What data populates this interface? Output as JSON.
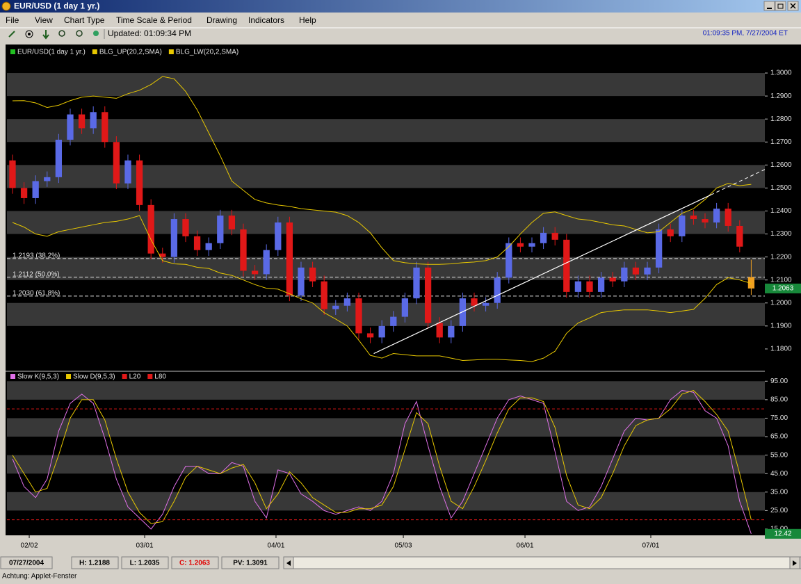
{
  "window": {
    "title": "EUR/USD (1 day  1 yr.)",
    "menu": [
      "File",
      "View",
      "Chart Type",
      "Time Scale & Period",
      "Drawing",
      "Indicators",
      "Help"
    ],
    "updated": "Updated: 01:09:34 PM",
    "clock": "01:09:35 PM, 7/27/2004 ET",
    "status": [
      "07/27/2004",
      "H: 1.2188",
      "L: 1.2035",
      "C: 1.2063",
      "PV: 1.3091"
    ],
    "footer": "Achtung: Applet-Fenster"
  },
  "chart_data": [
    {
      "type": "candlestick",
      "grid": true,
      "grid_color": "#383838",
      "box_color": "#17883a",
      "xlim": [
        -0.48,
        65.18
      ],
      "ylim": [
        1.1706,
        1.3112
      ],
      "yticks": [
        {
          "value": 1.18,
          "label": "1.1800"
        },
        {
          "value": 1.19,
          "label": "1.1900"
        },
        {
          "value": 1.2,
          "label": "1.2000"
        },
        {
          "value": 1.21,
          "label": "1.2100"
        },
        {
          "value": 1.22,
          "label": "1.2200"
        },
        {
          "value": 1.23,
          "label": "1.2300"
        },
        {
          "value": 1.24,
          "label": "1.2400"
        },
        {
          "value": 1.25,
          "label": "1.2500"
        },
        {
          "value": 1.26,
          "label": "1.2600"
        },
        {
          "value": 1.27,
          "label": "1.2700"
        },
        {
          "value": 1.28,
          "label": "1.2800"
        },
        {
          "value": 1.29,
          "label": "1.2900"
        },
        {
          "value": 1.3,
          "label": "1.3000"
        }
      ],
      "series": [
        {
          "name": "EUR/USD(1 day  1 yr.)",
          "color": "#22c022",
          "up_color": "#5a6ae6",
          "down_color": "#e01818",
          "last_color": "#f0a020",
          "open": [
            1.262,
            1.25,
            1.2456,
            1.253,
            1.2547,
            1.271,
            1.282,
            1.276,
            1.283,
            1.27,
            1.252,
            1.262,
            1.2426,
            1.2215,
            1.22,
            1.2365,
            1.229,
            1.223,
            1.226,
            1.238,
            1.232,
            1.214,
            1.2125,
            1.223,
            1.235,
            1.2033,
            1.2154,
            1.2094,
            1.1973,
            1.1988,
            1.202,
            1.1868,
            1.185,
            1.19,
            1.194,
            1.202,
            1.2154,
            1.1913,
            1.185,
            1.19,
            1.202,
            1.1988,
            1.2,
            1.211,
            1.226,
            1.2245,
            1.226,
            1.2305,
            1.2275,
            1.2048,
            1.2094,
            1.2048,
            1.211,
            1.2094,
            1.2154,
            1.2124,
            1.2154,
            1.232,
            1.229,
            1.238,
            1.2365,
            1.235,
            1.241,
            1.2335,
            1.2112
          ],
          "high": [
            1.2645,
            1.2525,
            1.2555,
            1.2572,
            1.2735,
            1.2845,
            1.2845,
            1.2855,
            1.2855,
            1.2725,
            1.2645,
            1.2645,
            1.2451,
            1.224,
            1.239,
            1.239,
            1.2315,
            1.2285,
            1.2405,
            1.2405,
            1.2345,
            1.2165,
            1.2255,
            1.2375,
            1.2375,
            1.2179,
            1.2179,
            1.2119,
            1.2013,
            1.2045,
            1.2045,
            1.1893,
            1.1925,
            1.1965,
            1.2045,
            1.2179,
            1.2179,
            1.1938,
            1.1925,
            1.2045,
            1.2045,
            1.2025,
            1.2135,
            1.2285,
            1.2285,
            1.2285,
            1.233,
            1.233,
            1.23,
            1.2119,
            1.2119,
            1.2135,
            1.2135,
            1.2179,
            1.2179,
            1.2179,
            1.2345,
            1.2345,
            1.2405,
            1.2405,
            1.239,
            1.2435,
            1.2435,
            1.236,
            1.2188
          ],
          "low": [
            1.2475,
            1.2431,
            1.2431,
            1.2505,
            1.2522,
            1.2685,
            1.2735,
            1.2735,
            1.2675,
            1.2495,
            1.2495,
            1.2401,
            1.219,
            1.2175,
            1.2175,
            1.2265,
            1.2205,
            1.2205,
            1.2235,
            1.2295,
            1.2115,
            1.21,
            1.21,
            1.2205,
            1.2008,
            1.2008,
            1.2069,
            1.1948,
            1.1948,
            1.1963,
            1.1843,
            1.1825,
            1.1825,
            1.1875,
            1.1915,
            1.1995,
            1.1888,
            1.1825,
            1.1825,
            1.1875,
            1.1963,
            1.1963,
            1.1975,
            1.2085,
            1.222,
            1.222,
            1.2235,
            1.225,
            1.2023,
            1.2023,
            1.2023,
            1.2023,
            1.2069,
            1.2069,
            1.2099,
            1.2099,
            1.2129,
            1.2265,
            1.2265,
            1.234,
            1.2325,
            1.2325,
            1.231,
            1.222,
            1.2035
          ],
          "close": [
            1.25,
            1.2456,
            1.253,
            1.2547,
            1.271,
            1.282,
            1.276,
            1.283,
            1.27,
            1.252,
            1.262,
            1.2426,
            1.2215,
            1.22,
            1.2365,
            1.229,
            1.223,
            1.226,
            1.238,
            1.232,
            1.214,
            1.2125,
            1.223,
            1.235,
            1.2033,
            1.2154,
            1.2094,
            1.1973,
            1.1988,
            1.202,
            1.1868,
            1.185,
            1.19,
            1.194,
            1.202,
            1.2154,
            1.1913,
            1.185,
            1.19,
            1.202,
            1.1988,
            1.2,
            1.211,
            1.226,
            1.2245,
            1.226,
            1.2305,
            1.2275,
            1.2048,
            1.2094,
            1.2048,
            1.211,
            1.2094,
            1.2154,
            1.2124,
            1.2154,
            1.232,
            1.229,
            1.238,
            1.2365,
            1.235,
            1.241,
            1.2335,
            1.2245,
            1.2063
          ]
        },
        {
          "name": "BLG_UP(20,2,SMA)",
          "color": "#e8c800",
          "values": [
            1.2879,
            1.288,
            1.287,
            1.285,
            1.286,
            1.288,
            1.2895,
            1.29,
            1.2895,
            1.289,
            1.291,
            1.2925,
            1.295,
            1.2985,
            1.2975,
            1.292,
            1.284,
            1.274,
            1.264,
            1.253,
            1.249,
            1.245,
            1.2435,
            1.2426,
            1.242,
            1.241,
            1.2405,
            1.24,
            1.2395,
            1.238,
            1.235,
            1.2305,
            1.224,
            1.2184,
            1.2175,
            1.217,
            1.2168,
            1.2168,
            1.217,
            1.2175,
            1.2178,
            1.2184,
            1.22,
            1.2245,
            1.23,
            1.235,
            1.239,
            1.2396,
            1.238,
            1.2365,
            1.236,
            1.235,
            1.234,
            1.2335,
            1.232,
            1.2305,
            1.231,
            1.235,
            1.239,
            1.241,
            1.245,
            1.25,
            1.252,
            1.251,
            1.2516
          ]
        },
        {
          "name": "BLG_LW(20,2,SMA)",
          "color": "#e8c800",
          "values": [
            1.235,
            1.233,
            1.23,
            1.229,
            1.231,
            1.232,
            1.233,
            1.234,
            1.235,
            1.2355,
            1.2365,
            1.238,
            1.2275,
            1.2184,
            1.217,
            1.2168,
            1.2155,
            1.215,
            1.213,
            1.212,
            1.21,
            1.208,
            1.2064,
            1.206,
            1.204,
            1.2018,
            1.2,
            1.1958,
            1.193,
            1.19,
            1.1838,
            1.1772,
            1.176,
            1.178,
            1.1775,
            1.177,
            1.177,
            1.177,
            1.176,
            1.175,
            1.1752,
            1.1755,
            1.1755,
            1.1752,
            1.175,
            1.1745,
            1.176,
            1.179,
            1.1868,
            1.1913,
            1.1935,
            1.1958,
            1.1965,
            1.197,
            1.197,
            1.197,
            1.1965,
            1.1958,
            1.1965,
            1.1972,
            1.202,
            1.208,
            1.211,
            1.21,
            1.2085
          ]
        }
      ],
      "levels": [
        {
          "value": 1.2193,
          "label": "1.2193 (38.2%)"
        },
        {
          "value": 1.2112,
          "label": "1.2112 (50.0%)"
        },
        {
          "value": 1.203,
          "label": "1.2030 (61.8%)"
        }
      ],
      "trendline": {
        "x": [
          31.3,
          60.5
        ],
        "values": [
          1.178,
          1.247
        ]
      }
    },
    {
      "type": "line",
      "grid": true,
      "grid_color": "#383838",
      "box_color": "#17883a",
      "xlim": [
        -0.48,
        65.18
      ],
      "ylim": [
        11.6,
        100
      ],
      "yticks": [
        {
          "value": 15,
          "label": "15.00"
        },
        {
          "value": 25,
          "label": "25.00"
        },
        {
          "value": 35,
          "label": "35.00"
        },
        {
          "value": 45,
          "label": "45.00"
        },
        {
          "value": 55,
          "label": "55.00"
        },
        {
          "value": 65,
          "label": "65.00"
        },
        {
          "value": 75,
          "label": "75.00"
        },
        {
          "value": 85,
          "label": "85.00"
        },
        {
          "value": 95,
          "label": "95.00"
        }
      ],
      "xticks": [
        {
          "value": 1.45,
          "label": "02/02"
        },
        {
          "value": 11.45,
          "label": "03/01"
        },
        {
          "value": 22.83,
          "label": "04/01"
        },
        {
          "value": 33.86,
          "label": "05/03"
        },
        {
          "value": 44.4,
          "label": "06/01"
        },
        {
          "value": 55.3,
          "label": "07/01"
        }
      ],
      "series": [
        {
          "name": "Slow K(9,5,3)",
          "color": "#e070e8",
          "values": [
            53,
            38,
            32,
            42,
            68,
            83,
            88,
            83,
            64,
            42,
            27,
            21,
            15,
            23,
            38,
            49,
            49,
            45,
            45,
            51,
            49,
            30,
            21,
            47,
            45,
            34,
            30,
            25,
            23,
            25,
            27,
            25,
            30,
            45,
            72,
            84,
            60,
            38,
            21,
            30,
            45,
            60,
            75,
            85,
            87,
            85,
            83,
            57,
            30,
            25,
            27,
            38,
            53,
            68,
            75,
            74,
            75,
            85,
            90,
            89,
            79,
            75,
            60,
            30,
            12.42
          ]
        },
        {
          "name": "Slow D(9,5,3)",
          "color": "#e8c800",
          "values": [
            55,
            45,
            35,
            37,
            55,
            75,
            85,
            85,
            74,
            53,
            35,
            24,
            18,
            19,
            30,
            43,
            49,
            47,
            45,
            48,
            50,
            40,
            26,
            34,
            46,
            40,
            32,
            28,
            24,
            24,
            26,
            26,
            28,
            38,
            58,
            78,
            72,
            49,
            30,
            26,
            38,
            52,
            67,
            80,
            86,
            86,
            84,
            70,
            44,
            28,
            26,
            32,
            45,
            60,
            71,
            74,
            75,
            80,
            88,
            90,
            84,
            77,
            68,
            45,
            20
          ]
        },
        {
          "name": "L20",
          "color": "#e01818",
          "value": 20
        },
        {
          "name": "L80",
          "color": "#e01818",
          "value": 80
        }
      ]
    }
  ]
}
